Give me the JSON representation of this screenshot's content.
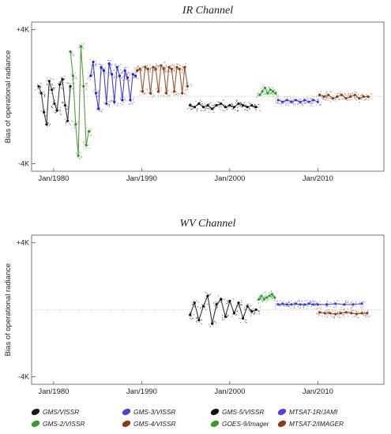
{
  "chart_data": [
    {
      "type": "scatter",
      "title": "IR Channel",
      "xlabel": "",
      "ylabel": "Bias of operational radiance",
      "x_ticks": [
        "Jan/1980",
        "Jan/1990",
        "Jan/2000",
        "Jan/2010"
      ],
      "y_ticks": [
        "+4K",
        "-4K"
      ],
      "xlim": [
        1977.5,
        2017.5
      ],
      "ylim": [
        -4.3,
        4.3
      ],
      "grid": false,
      "zero_line": true,
      "series": [
        {
          "name": "GMS/VISSR",
          "color": "#1a1a1a",
          "x": [
            1978.3,
            1978.6,
            1978.9,
            1979.2,
            1979.5,
            1979.8,
            1980.1,
            1980.4,
            1980.7,
            1981.0,
            1981.3,
            1981.6,
            1981.9
          ],
          "y": [
            0.6,
            0.2,
            -0.9,
            -1.6,
            0.9,
            0.4,
            -0.4,
            -0.8,
            0.7,
            1.0,
            -0.5,
            -1.4,
            0.6
          ]
        },
        {
          "name": "GMS-2/VISSR",
          "color": "#3a8a26",
          "x": [
            1981.9,
            1982.2,
            1982.5,
            1982.8,
            1983.1,
            1983.4,
            1983.7,
            1984.0
          ],
          "y": [
            2.6,
            1.2,
            -1.6,
            -3.4,
            2.9,
            0.6,
            -2.8,
            -2.0
          ]
        },
        {
          "name": "GMS-3/VISSR",
          "color": "#2222d0",
          "x": [
            1984.2,
            1984.5,
            1984.8,
            1985.1,
            1985.4,
            1985.7,
            1986.0,
            1986.3,
            1986.6,
            1986.9,
            1987.2,
            1987.5,
            1987.8,
            1988.1,
            1988.4,
            1988.7,
            1989.0,
            1989.3
          ],
          "y": [
            1.2,
            2.0,
            0.2,
            -0.7,
            1.7,
            1.5,
            -0.4,
            1.9,
            1.3,
            -0.3,
            1.7,
            1.2,
            -0.2,
            1.5,
            1.1,
            -0.2,
            1.3,
            1.2
          ]
        },
        {
          "name": "GMS-4/VISSR",
          "color": "#8b3a12",
          "x": [
            1989.5,
            1989.8,
            1990.1,
            1990.4,
            1990.7,
            1991.0,
            1991.3,
            1991.6,
            1991.9,
            1992.2,
            1992.5,
            1992.8,
            1993.1,
            1993.4,
            1993.7,
            1994.0,
            1994.3,
            1994.6,
            1994.9,
            1995.2
          ],
          "y": [
            1.5,
            1.6,
            0.3,
            1.7,
            1.6,
            0.2,
            1.7,
            1.6,
            0.3,
            1.8,
            1.6,
            0.2,
            1.7,
            1.6,
            0.3,
            1.7,
            1.6,
            0.2,
            1.7,
            0.6
          ]
        },
        {
          "name": "GMS-5/VISSR",
          "color": "#111111",
          "x": [
            1995.5,
            1996.0,
            1996.5,
            1997.0,
            1997.5,
            1998.0,
            1998.5,
            1999.0,
            1999.5,
            2000.0,
            2000.5,
            2001.0,
            2001.5,
            2002.0,
            2002.5,
            2003.0
          ],
          "y": [
            -0.5,
            -0.6,
            -0.4,
            -0.6,
            -0.5,
            -0.7,
            -0.5,
            -0.4,
            -0.6,
            -0.5,
            -0.6,
            -0.4,
            -0.5,
            -0.6,
            -0.5,
            -0.6
          ]
        },
        {
          "name": "GOES-9/Imager",
          "color": "#2e9a2a",
          "x": [
            2003.4,
            2003.7,
            2004.0,
            2004.3,
            2004.6,
            2004.9,
            2005.2
          ],
          "y": [
            0.1,
            0.3,
            0.5,
            0.2,
            0.4,
            0.3,
            0.2
          ]
        },
        {
          "name": "MTSAT-1R/JAMI",
          "color": "#3b3bd6",
          "x": [
            2005.5,
            2006.0,
            2006.5,
            2007.0,
            2007.5,
            2008.0,
            2008.5,
            2009.0,
            2009.5,
            2010.0
          ],
          "y": [
            -0.2,
            -0.3,
            -0.2,
            -0.3,
            -0.2,
            -0.3,
            -0.2,
            -0.3,
            -0.2,
            -0.3
          ]
        },
        {
          "name": "MTSAT-2/IMAGER",
          "color": "#8b3a12",
          "x": [
            2010.2,
            2010.7,
            2011.2,
            2011.7,
            2012.2,
            2012.7,
            2013.2,
            2013.7,
            2014.2,
            2014.7,
            2015.2,
            2015.7
          ],
          "y": [
            0.1,
            0.0,
            0.1,
            -0.1,
            0.0,
            0.1,
            -0.1,
            0.0,
            0.1,
            -0.1,
            0.0,
            0.0
          ]
        }
      ]
    },
    {
      "type": "scatter",
      "title": "WV Channel",
      "xlabel": "",
      "ylabel": "Bias of operational radiance",
      "x_ticks": [
        "Jan/1980",
        "Jan/1990",
        "Jan/2000",
        "Jan/2010"
      ],
      "y_ticks": [
        "+4K",
        "-4K"
      ],
      "xlim": [
        1977.5,
        2017.5
      ],
      "ylim": [
        -4.3,
        4.3
      ],
      "grid": false,
      "zero_line": true,
      "series": [
        {
          "name": "GMS-5/VISSR",
          "color": "#111111",
          "x": [
            1995.5,
            1996.0,
            1996.5,
            1997.0,
            1997.5,
            1998.0,
            1998.5,
            1999.0,
            1999.5,
            2000.0,
            2000.5,
            2001.0,
            2001.5,
            2002.0,
            2002.5,
            2003.0
          ],
          "y": [
            -0.3,
            0.4,
            -0.6,
            0.2,
            0.8,
            -0.8,
            0.3,
            0.6,
            -0.4,
            0.5,
            -0.2,
            0.4,
            -0.5,
            0.2,
            -0.1,
            0.0
          ]
        },
        {
          "name": "GOES-9/Imager",
          "color": "#2e9a2a",
          "x": [
            2003.3,
            2003.6,
            2003.9,
            2004.2,
            2004.5,
            2004.8,
            2005.1
          ],
          "y": [
            0.6,
            0.8,
            0.6,
            0.7,
            0.8,
            0.9,
            0.7
          ]
        },
        {
          "name": "MTSAT-1R/JAMI",
          "color": "#3b3bd6",
          "x": [
            2005.5,
            2006.0,
            2006.5,
            2007.0,
            2007.5,
            2008.0,
            2008.5,
            2009.0,
            2009.5,
            2010.0,
            2011.0,
            2012.0,
            2013.0,
            2014.0,
            2015.0
          ],
          "y": [
            0.3,
            0.35,
            0.3,
            0.3,
            0.35,
            0.3,
            0.3,
            0.35,
            0.3,
            0.3,
            0.3,
            0.35,
            0.3,
            0.3,
            0.35
          ]
        },
        {
          "name": "MTSAT-2/IMAGER",
          "color": "#8b3a12",
          "x": [
            2010.2,
            2010.8,
            2011.4,
            2012.0,
            2012.6,
            2013.2,
            2013.8,
            2014.4,
            2015.0,
            2015.6
          ],
          "y": [
            -0.15,
            -0.2,
            -0.2,
            -0.25,
            -0.2,
            -0.15,
            -0.2,
            -0.25,
            -0.2,
            -0.2
          ]
        }
      ]
    }
  ],
  "legend": [
    {
      "label": "GMS/VISSR",
      "color": "#1a1a1a"
    },
    {
      "label": "GMS-3/VISSR",
      "color": "#5b3bd6"
    },
    {
      "label": "GMS-5/VISSR",
      "color": "#111111"
    },
    {
      "label": "MTSAT-1R/JAMI",
      "color": "#5b3bd6"
    },
    {
      "label": "GMS-2/VISSR",
      "color": "#3a9a26"
    },
    {
      "label": "GMS-4/VISSR",
      "color": "#8b3a12"
    },
    {
      "label": "GOES-9/Imager",
      "color": "#3a9a26"
    },
    {
      "label": "MTSAT-2/IMAGER",
      "color": "#8b3a12"
    }
  ]
}
